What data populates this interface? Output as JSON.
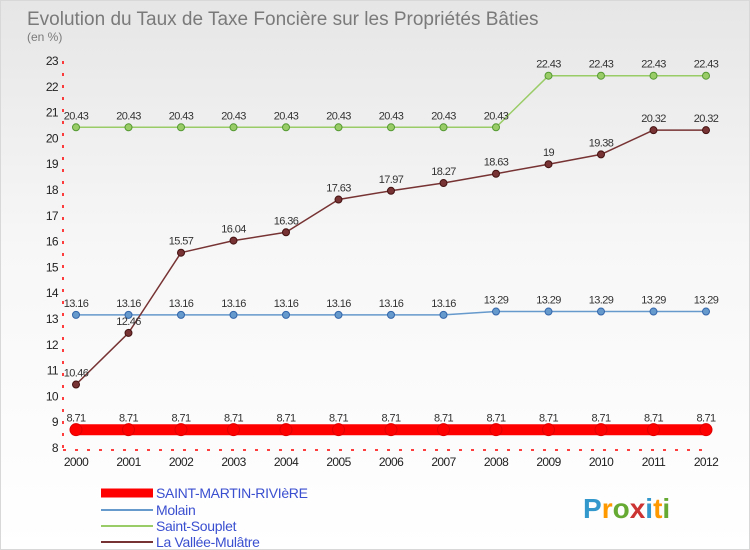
{
  "chart_data": {
    "type": "line",
    "title": "Evolution du Taux de Taxe Foncière sur les Propriétés Bâties",
    "subtitle": "(en %)",
    "x": [
      "2000",
      "2001",
      "2002",
      "2003",
      "2004",
      "2005",
      "2006",
      "2007",
      "2008",
      "2009",
      "2010",
      "2011",
      "2012"
    ],
    "y_ticks": [
      "8",
      "9",
      "10",
      "11",
      "12",
      "13",
      "14",
      "15",
      "16",
      "17",
      "18",
      "19",
      "20",
      "21",
      "22",
      "23"
    ],
    "ylim": [
      8,
      23
    ],
    "grid": false,
    "legend_position": "bottom-left",
    "series": [
      {
        "name": "SAINT-MARTIN-RIVIèRE",
        "color": "#ff0000",
        "values": [
          8.71,
          8.71,
          8.71,
          8.71,
          8.71,
          8.71,
          8.71,
          8.71,
          8.71,
          8.71,
          8.71,
          8.71,
          8.71
        ],
        "labels": [
          "8.71",
          "8.71",
          "8.71",
          "8.71",
          "8.71",
          "8.71",
          "8.71",
          "8.71",
          "8.71",
          "8.71",
          "8.71",
          "8.71",
          "8.71"
        ]
      },
      {
        "name": "Molain",
        "color": "#6699cc",
        "values": [
          13.16,
          13.16,
          13.16,
          13.16,
          13.16,
          13.16,
          13.16,
          13.16,
          13.29,
          13.29,
          13.29,
          13.29,
          13.29
        ],
        "labels": [
          "13.16",
          "13.16",
          "13.16",
          "13.16",
          "13.16",
          "13.16",
          "13.16",
          "13.16",
          "13.29",
          "13.29",
          "13.29",
          "13.29",
          "13.29"
        ]
      },
      {
        "name": "Saint-Souplet",
        "color": "#99cc66",
        "values": [
          20.43,
          20.43,
          20.43,
          20.43,
          20.43,
          20.43,
          20.43,
          20.43,
          20.43,
          22.43,
          22.43,
          22.43,
          22.43
        ],
        "labels": [
          "20.43",
          "20.43",
          "20.43",
          "20.43",
          "20.43",
          "20.43",
          "20.43",
          "20.43",
          "20.43",
          "22.43",
          "22.43",
          "22.43",
          "22.43"
        ]
      },
      {
        "name": "La Vallée-Mulâtre",
        "color": "#773333",
        "values": [
          10.46,
          12.46,
          15.57,
          16.04,
          16.36,
          17.63,
          17.97,
          18.27,
          18.63,
          19,
          19.38,
          20.32,
          20.32
        ],
        "labels": [
          "10.46",
          "12.46",
          "15.57",
          "16.04",
          "16.36",
          "17.63",
          "17.97",
          "18.27",
          "18.63",
          "19",
          "19.38",
          "20.32",
          "20.32"
        ]
      }
    ]
  },
  "logo": {
    "text": "Proxiti"
  }
}
